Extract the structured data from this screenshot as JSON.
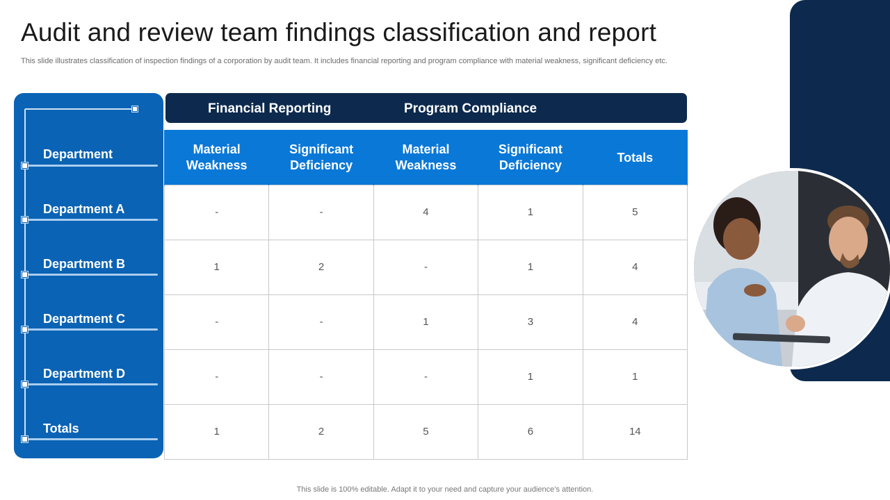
{
  "title": "Audit and review team findings classification and report",
  "subtitle": "This slide illustrates classification of inspection findings of a corporation by audit team. It includes financial reporting and program compliance with material weakness, significant deficiency etc.",
  "groups": [
    "Financial Reporting",
    "Program Compliance"
  ],
  "sidebar": {
    "items": [
      "Department",
      "Department A",
      "Department B",
      "Department C",
      "Department D",
      "Totals"
    ]
  },
  "table": {
    "headers": [
      [
        "Material",
        "Weakness"
      ],
      [
        "Significant",
        "Deficiency"
      ],
      [
        "Material",
        "Weakness"
      ],
      [
        "Significant",
        "Deficiency"
      ],
      [
        "Totals"
      ]
    ],
    "rows": [
      [
        "-",
        "-",
        "4",
        "1",
        "5"
      ],
      [
        "1",
        "2",
        "-",
        "1",
        "4"
      ],
      [
        "-",
        "-",
        "1",
        "3",
        "4"
      ],
      [
        "-",
        "-",
        "-",
        "1",
        "1"
      ],
      [
        "1",
        "2",
        "5",
        "6",
        "14"
      ]
    ]
  },
  "footer": "This slide is 100% editable. Adapt it to your need and capture your audience’s attention.",
  "colors": {
    "navy": "#0d2a4e",
    "blue": "#0a63b4",
    "header_blue": "#0a78d7"
  }
}
